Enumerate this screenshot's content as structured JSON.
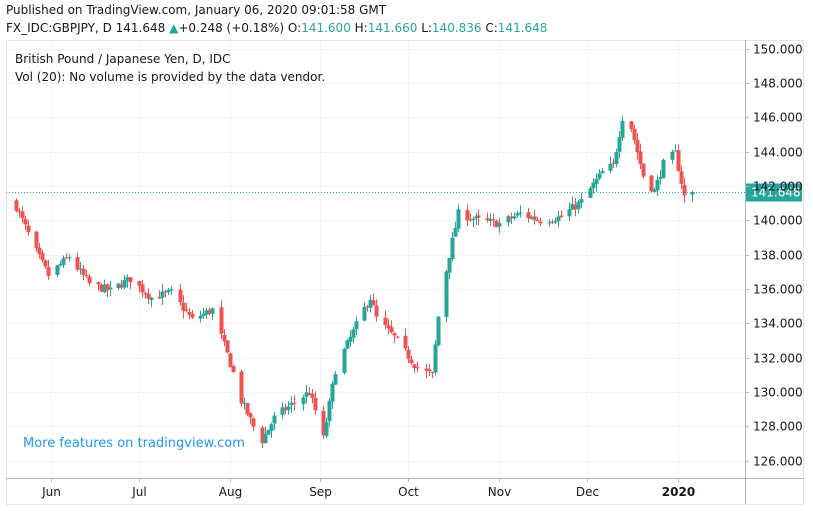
{
  "header": {
    "published": "Published on TradingView.com, January 06, 2020 09:01:58 GMT",
    "symbol": "FX_IDC:GBPJPY, D",
    "last": "141.648",
    "change": "+0.248 (+0.18%)",
    "o_label": "O:",
    "o_value": "141.600",
    "h_label": "H:",
    "h_value": "141.660",
    "l_label": "L:",
    "l_value": "140.836",
    "c_label": "C:",
    "c_value": "141.648"
  },
  "legend": {
    "title": "British Pound / Japanese Yen, D, IDC",
    "volume_note": "Vol (20): No volume is provided by the data vendor."
  },
  "watermark": "More features on tradingview.com",
  "colors": {
    "up": "#26a69a",
    "down": "#ef5350",
    "price_line": "#26a69a",
    "grid": "#f0f3fa",
    "axis_text": "#131722",
    "watermark": "#2196f3"
  },
  "icons": {
    "change_arrow": "triangle-up-icon"
  },
  "chart_data": {
    "type": "candlestick",
    "title": "British Pound / Japanese Yen, D, IDC",
    "ylim": [
      125,
      150.5
    ],
    "y_ticks": [
      "150.000",
      "148.000",
      "146.000",
      "144.000",
      "142.000",
      "140.000",
      "138.000",
      "136.000",
      "134.000",
      "132.000",
      "130.000",
      "128.000",
      "126.000"
    ],
    "x_ticks": [
      "Jun",
      "Jul",
      "Aug",
      "Sep",
      "Oct",
      "Nov",
      "Dec",
      "2020"
    ],
    "last_price": 141.648,
    "last_price_label": "141.648",
    "grid": true,
    "close_path": [
      [
        "2019-05-20",
        140.8
      ],
      [
        "2019-05-24",
        139.2
      ],
      [
        "2019-05-31",
        136.8
      ],
      [
        "2019-06-07",
        137.9
      ],
      [
        "2019-06-14",
        136.3
      ],
      [
        "2019-06-21",
        135.9
      ],
      [
        "2019-06-28",
        136.6
      ],
      [
        "2019-07-05",
        135.5
      ],
      [
        "2019-07-12",
        135.8
      ],
      [
        "2019-07-19",
        134.2
      ],
      [
        "2019-07-26",
        134.8
      ],
      [
        "2019-07-31",
        132.2
      ],
      [
        "2019-08-05",
        129.5
      ],
      [
        "2019-08-09",
        128.0
      ],
      [
        "2019-08-12",
        127.2
      ],
      [
        "2019-08-16",
        128.5
      ],
      [
        "2019-08-23",
        129.4
      ],
      [
        "2019-08-28",
        130.0
      ],
      [
        "2019-09-02",
        127.3
      ],
      [
        "2019-09-06",
        131.3
      ],
      [
        "2019-09-13",
        133.9
      ],
      [
        "2019-09-18",
        135.5
      ],
      [
        "2019-09-20",
        134.3
      ],
      [
        "2019-09-27",
        133.0
      ],
      [
        "2019-10-04",
        131.4
      ],
      [
        "2019-10-09",
        131.0
      ],
      [
        "2019-10-11",
        134.4
      ],
      [
        "2019-10-15",
        138.0
      ],
      [
        "2019-10-18",
        140.4
      ],
      [
        "2019-10-25",
        140.0
      ],
      [
        "2019-11-01",
        139.8
      ],
      [
        "2019-11-08",
        140.4
      ],
      [
        "2019-11-15",
        140.0
      ],
      [
        "2019-11-22",
        140.2
      ],
      [
        "2019-11-29",
        141.1
      ],
      [
        "2019-12-06",
        142.8
      ],
      [
        "2019-12-10",
        143.2
      ],
      [
        "2019-12-13",
        146.0
      ],
      [
        "2019-12-16",
        145.4
      ],
      [
        "2019-12-20",
        142.6
      ],
      [
        "2019-12-24",
        141.7
      ],
      [
        "2019-12-27",
        143.3
      ],
      [
        "2019-12-31",
        143.9
      ],
      [
        "2020-01-03",
        141.4
      ],
      [
        "2020-01-06",
        141.648
      ]
    ]
  }
}
